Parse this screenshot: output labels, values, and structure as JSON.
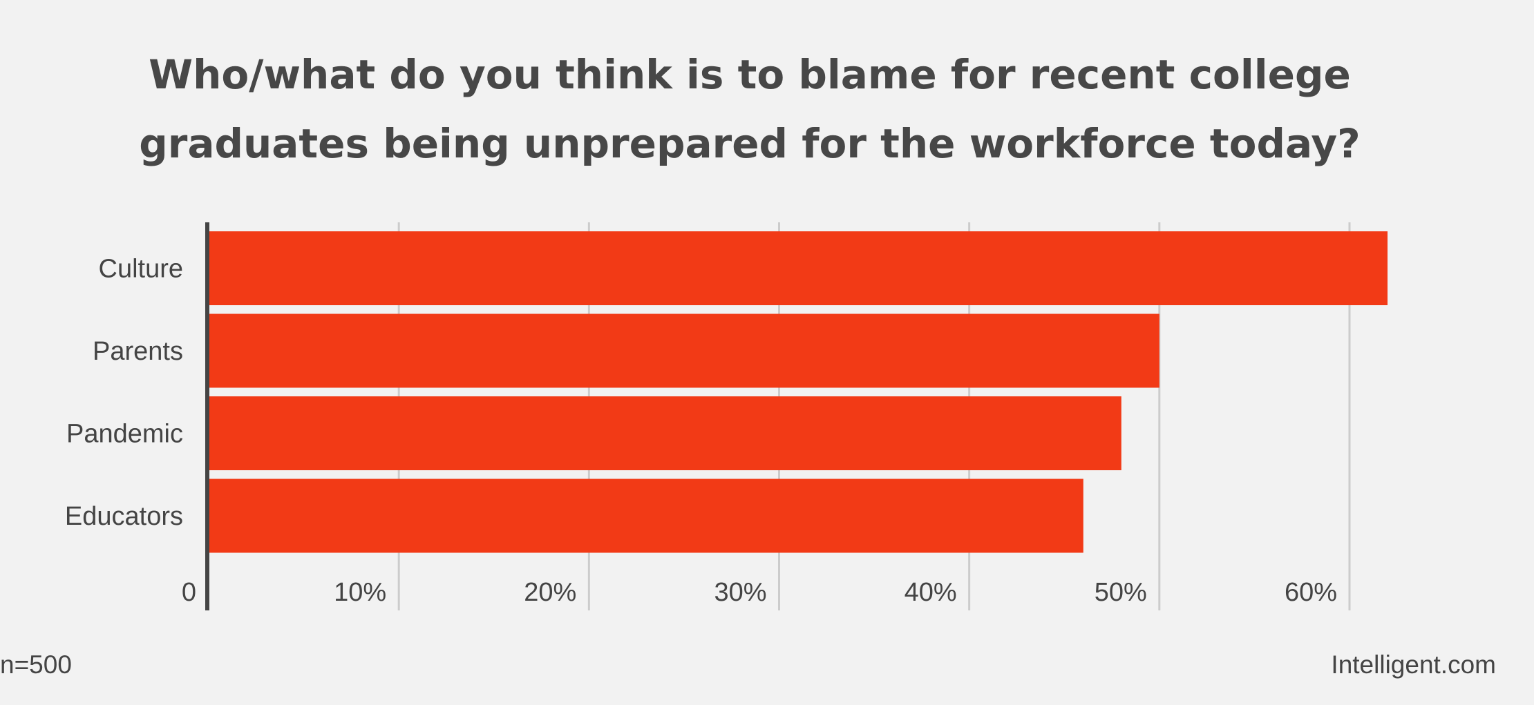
{
  "chart_data": {
    "type": "bar",
    "orientation": "horizontal",
    "title": "Who/what do you think is to blame for recent college graduates being unprepared for the workforce today?",
    "title_lines": [
      "Who/what do you think is to blame for recent college",
      "graduates being unprepared for the workforce today?"
    ],
    "categories": [
      "Culture",
      "Parents",
      "Pandemic",
      "Educators"
    ],
    "values": [
      62,
      50,
      48,
      46
    ],
    "unit": "%",
    "xlim": [
      0,
      60
    ],
    "ticks": [
      {
        "value": 0,
        "label": "0"
      },
      {
        "value": 10,
        "label": "10%"
      },
      {
        "value": 20,
        "label": "20%"
      },
      {
        "value": 30,
        "label": "30%"
      },
      {
        "value": 40,
        "label": "40%"
      },
      {
        "value": 50,
        "label": "50%"
      },
      {
        "value": 60,
        "label": "60%"
      }
    ],
    "grid": true,
    "bar_color": "#f23a16",
    "axis_color": "#444444",
    "grid_color": "#cccccc"
  },
  "footer": {
    "sample_size": "n=500",
    "source": "Intelligent.com"
  }
}
